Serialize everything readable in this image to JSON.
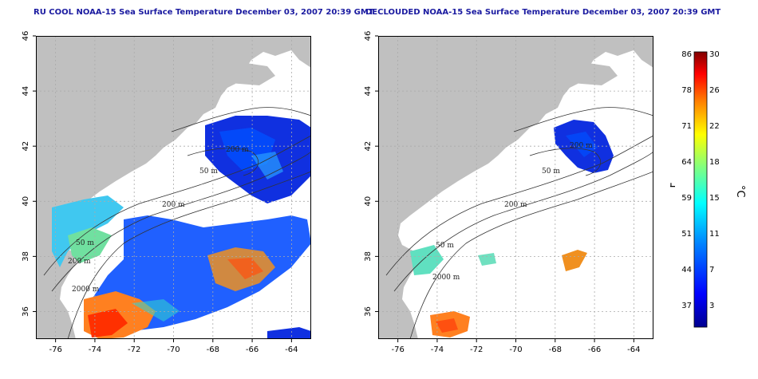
{
  "panels": [
    {
      "title": "RU COOL NOAA-15 Sea Surface Temperature December 03, 2007 20:39 GMT",
      "depth_labels": [
        "200 m",
        "50 m",
        "200 m",
        "50 m",
        "200 m",
        "2000 m"
      ]
    },
    {
      "title": "DECLOUDED NOAA-15 Sea Surface Temperature December 03, 2007 20:39 GMT",
      "depth_labels": [
        "200 m",
        "50 m",
        "200 m",
        "50 m",
        "2000 m"
      ]
    }
  ],
  "axes": {
    "x_ticks": [
      "-76",
      "-74",
      "-72",
      "-70",
      "-68",
      "-66",
      "-64"
    ],
    "y_ticks": [
      "36",
      "38",
      "40",
      "42",
      "44",
      "46"
    ],
    "x_values": [
      -76,
      -74,
      -72,
      -70,
      -68,
      -66,
      -64
    ],
    "y_values": [
      36,
      38,
      40,
      42,
      44,
      46
    ],
    "lon_range": [
      -77,
      -63
    ],
    "lat_range": [
      35,
      46
    ]
  },
  "colorbar": {
    "f_label": "°F",
    "c_label": "°C",
    "f_ticks": [
      "86",
      "78",
      "71",
      "64",
      "59",
      "51",
      "44",
      "37"
    ],
    "c_ticks": [
      "30",
      "26",
      "22",
      "18",
      "15",
      "11",
      "7",
      "3"
    ],
    "colors": [
      "#00008f",
      "#0000ff",
      "#0080ff",
      "#00ffff",
      "#80ff80",
      "#ffff00",
      "#ff8000",
      "#ff0000",
      "#800000"
    ]
  },
  "colors": {
    "land": "#c0c0c0",
    "water": "#ffffff",
    "grid": "#aaaaaa",
    "title": "#1a1aa0"
  }
}
